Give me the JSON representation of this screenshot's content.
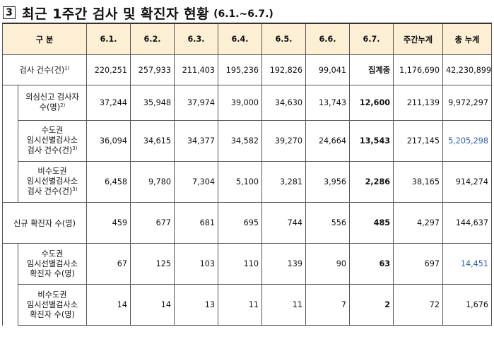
{
  "title": {
    "number": "3",
    "main": "최근 1주간 검사 및 확진자 현황",
    "sub": "(6.1.~6.7.)"
  },
  "table": {
    "headers": [
      "구 분",
      "6.1.",
      "6.2.",
      "6.3.",
      "6.4.",
      "6.5.",
      "6.6.",
      "6.7.",
      "주간누계",
      "총 누계"
    ],
    "rows": [
      {
        "label": "검사 건수(건)",
        "sup": "1)",
        "values": [
          "220,251",
          "257,933",
          "211,403",
          "195,236",
          "192,826",
          "99,041",
          "집계중",
          "1,176,690",
          "42,230,899"
        ]
      },
      {
        "label_lines": [
          "의심신고 검사자",
          "수(명)"
        ],
        "sup": "2)",
        "values": [
          "37,244",
          "35,948",
          "37,974",
          "39,000",
          "34,630",
          "13,743",
          "12,600",
          "211,139",
          "9,972,297"
        ]
      },
      {
        "label_lines": [
          "수도권",
          "임시선별검사소",
          "검사 건수(건)"
        ],
        "sup": "3)",
        "values": [
          "36,094",
          "34,615",
          "34,377",
          "34,582",
          "39,270",
          "24,664",
          "13,543",
          "217,145",
          "5,205,298"
        ]
      },
      {
        "label_lines": [
          "비수도권",
          "임시선별검사소",
          "검사 건수(건)"
        ],
        "sup": "3)",
        "values": [
          "6,458",
          "9,780",
          "7,304",
          "5,100",
          "3,281",
          "3,956",
          "2,286",
          "38,165",
          "914,274"
        ]
      },
      {
        "label": "신규 확진자 수(명)",
        "values": [
          "459",
          "677",
          "681",
          "695",
          "744",
          "556",
          "485",
          "4,297",
          "144,637"
        ]
      },
      {
        "label_lines": [
          "수도권",
          "임시선별검사소",
          "확진자 수(명)"
        ],
        "values": [
          "67",
          "125",
          "103",
          "110",
          "139",
          "90",
          "63",
          "697",
          "14,451"
        ]
      },
      {
        "label_lines": [
          "비수도권",
          "임시선별검사소",
          "확진자 수(명)"
        ],
        "values": [
          "14",
          "14",
          "13",
          "11",
          "11",
          "7",
          "2",
          "72",
          "1,676"
        ]
      }
    ]
  },
  "colors": {
    "header_bg": "#fcefd4",
    "highlight_blue": "#2e5fa8"
  }
}
